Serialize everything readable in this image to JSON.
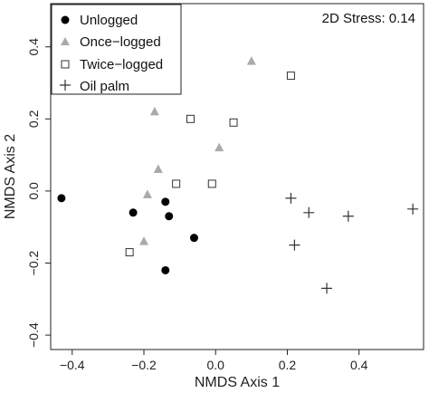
{
  "chart_data": {
    "type": "scatter",
    "xlabel": "NMDS Axis 1",
    "ylabel": "NMDS Axis 2",
    "xlim": [
      -0.46,
      0.58
    ],
    "ylim": [
      -0.44,
      0.52
    ],
    "x_ticks": [
      -0.4,
      -0.2,
      0.0,
      0.2,
      0.4
    ],
    "x_tick_labels": [
      "−0.4",
      "−0.2",
      "0.0",
      "0.2",
      "0.4"
    ],
    "y_ticks": [
      -0.4,
      -0.2,
      0.0,
      0.2,
      0.4
    ],
    "y_tick_labels": [
      "−0.4",
      "−0.2",
      "0.0",
      "0.2",
      "0.4"
    ],
    "grid": false,
    "legend_position": "top-left",
    "annotation": "2D Stress: 0.14",
    "series": [
      {
        "name": "Unlogged",
        "marker": "filled-circle",
        "color": "#000000",
        "points": [
          [
            -0.43,
            -0.02
          ],
          [
            -0.23,
            -0.06
          ],
          [
            -0.14,
            -0.03
          ],
          [
            -0.13,
            -0.07
          ],
          [
            -0.06,
            -0.13
          ],
          [
            -0.14,
            -0.22
          ]
        ]
      },
      {
        "name": "Once−logged",
        "marker": "filled-triangle",
        "color": "#aaaaaa",
        "points": [
          [
            0.1,
            0.36
          ],
          [
            -0.17,
            0.22
          ],
          [
            0.01,
            0.12
          ],
          [
            -0.16,
            0.06
          ],
          [
            -0.19,
            -0.01
          ],
          [
            -0.2,
            -0.14
          ]
        ]
      },
      {
        "name": "Twice−logged",
        "marker": "open-square",
        "color": "#333333",
        "points": [
          [
            0.21,
            0.32
          ],
          [
            -0.07,
            0.2
          ],
          [
            0.05,
            0.19
          ],
          [
            -0.11,
            0.02
          ],
          [
            -0.01,
            0.02
          ],
          [
            -0.24,
            -0.17
          ]
        ]
      },
      {
        "name": "Oil palm",
        "marker": "plus",
        "color": "#333333",
        "points": [
          [
            0.21,
            -0.02
          ],
          [
            0.26,
            -0.06
          ],
          [
            0.37,
            -0.07
          ],
          [
            0.55,
            -0.05
          ],
          [
            0.22,
            -0.15
          ],
          [
            0.31,
            -0.27
          ]
        ]
      }
    ]
  }
}
